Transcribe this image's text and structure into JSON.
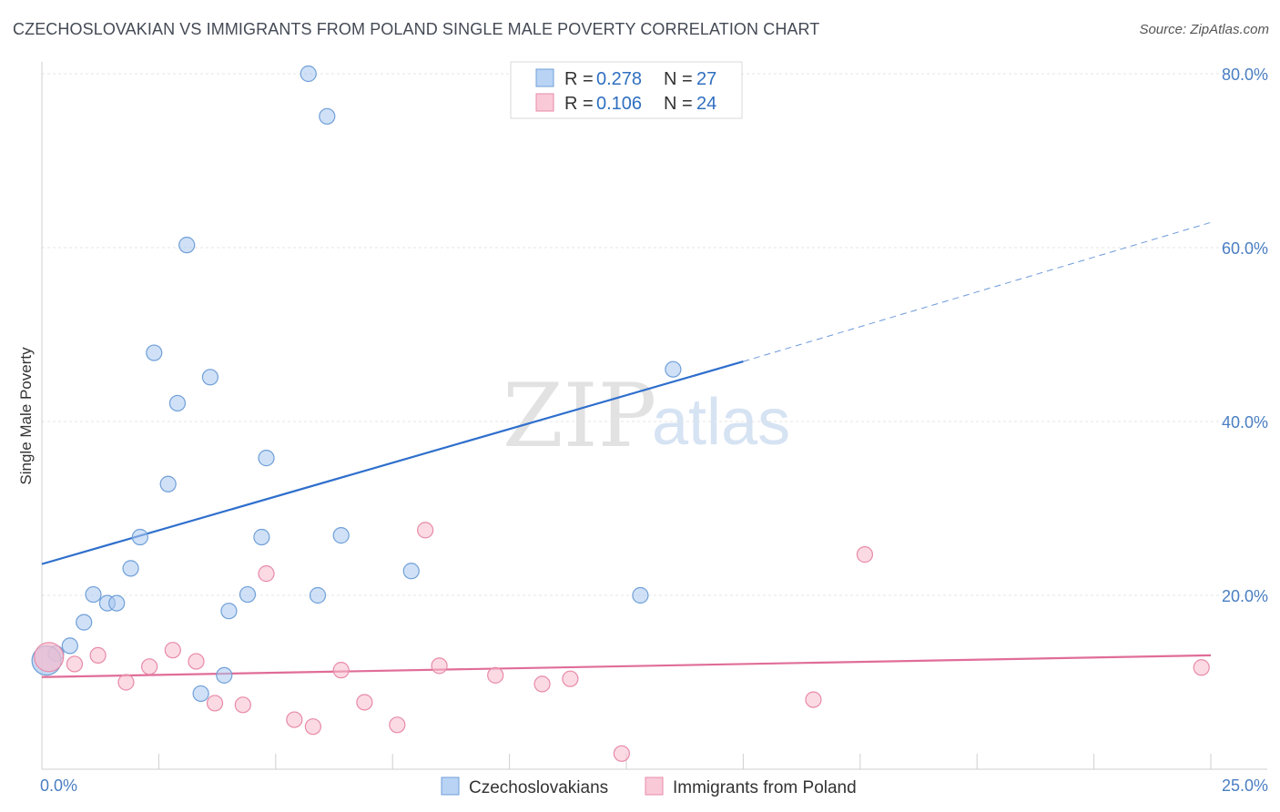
{
  "title": "CZECHOSLOVAKIAN VS IMMIGRANTS FROM POLAND SINGLE MALE POVERTY CORRELATION CHART",
  "source": "Source: ZipAtlas.com",
  "watermark": {
    "zip": "ZIP",
    "atlas": "atlas"
  },
  "legend": {
    "rows": [
      {
        "r_label": "R =",
        "r_value": "0.278",
        "n_label": "N =",
        "n_value": "27"
      },
      {
        "r_label": "R =",
        "r_value": "0.106",
        "n_label": "N =",
        "n_value": "24"
      }
    ]
  },
  "chart_data": {
    "type": "scatter",
    "title": "CZECHOSLOVAKIAN VS IMMIGRANTS FROM POLAND SINGLE MALE POVERTY CORRELATION CHART",
    "xlabel": "",
    "ylabel": "Single Male Poverty",
    "xlim": [
      0,
      25
    ],
    "ylim": [
      0,
      80
    ],
    "x_tick_labels": [
      "0.0%",
      "25.0%"
    ],
    "y_ticks": [
      20,
      40,
      60,
      80
    ],
    "y_tick_labels": [
      "20.0%",
      "40.0%",
      "60.0%",
      "80.0%"
    ],
    "grid": true,
    "legend_position": "top-center",
    "series": [
      {
        "name": "Czechoslovakians",
        "color": "#a9c8f0",
        "stroke": "#6f9fd8",
        "line_color": "#2f6fcc",
        "points": [
          [
            0.3,
            13.3
          ],
          [
            0.6,
            14.2
          ],
          [
            0.9,
            16.9
          ],
          [
            1.1,
            20.1
          ],
          [
            1.4,
            19.1
          ],
          [
            1.6,
            19.1
          ],
          [
            1.9,
            23.1
          ],
          [
            2.1,
            26.7
          ],
          [
            2.4,
            47.9
          ],
          [
            2.7,
            32.8
          ],
          [
            2.9,
            42.1
          ],
          [
            3.1,
            60.3
          ],
          [
            3.4,
            8.7
          ],
          [
            3.6,
            45.1
          ],
          [
            3.9,
            10.8
          ],
          [
            4.0,
            18.2
          ],
          [
            4.4,
            20.1
          ],
          [
            4.7,
            26.7
          ],
          [
            4.8,
            35.8
          ],
          [
            5.7,
            80.0
          ],
          [
            5.9,
            20.0
          ],
          [
            6.1,
            75.1
          ],
          [
            6.4,
            26.9
          ],
          [
            7.9,
            22.8
          ],
          [
            12.8,
            20.0
          ],
          [
            13.5,
            46.0
          ],
          [
            0.1,
            12.5
          ]
        ],
        "trend": {
          "x0": 0,
          "y0": 23.6,
          "x1": 15,
          "y1": 46.9,
          "x2": 25,
          "y2": 62.9
        }
      },
      {
        "name": "Immigrants from Poland",
        "color": "#f7bccd",
        "stroke": "#e88aa8",
        "line_color": "#e06d98",
        "points": [
          [
            0.7,
            12.1
          ],
          [
            1.2,
            13.1
          ],
          [
            1.8,
            10.0
          ],
          [
            2.3,
            11.8
          ],
          [
            2.8,
            13.7
          ],
          [
            3.3,
            12.4
          ],
          [
            3.7,
            7.6
          ],
          [
            4.3,
            7.4
          ],
          [
            4.8,
            22.5
          ],
          [
            5.4,
            5.7
          ],
          [
            5.8,
            4.9
          ],
          [
            6.4,
            11.4
          ],
          [
            6.9,
            7.7
          ],
          [
            7.6,
            5.1
          ],
          [
            8.2,
            27.5
          ],
          [
            8.5,
            11.9
          ],
          [
            9.7,
            10.8
          ],
          [
            10.7,
            9.8
          ],
          [
            11.3,
            10.4
          ],
          [
            12.4,
            1.8
          ],
          [
            16.5,
            8.0
          ],
          [
            17.6,
            24.7
          ],
          [
            24.8,
            11.7
          ],
          [
            0.15,
            12.9
          ]
        ],
        "trend": {
          "x0": 0,
          "y0": 10.6,
          "x1": 25,
          "y1": 13.1
        }
      }
    ]
  },
  "bottom_legend": [
    {
      "label": "Czechoslovakians",
      "color": "#a9c8f0",
      "stroke": "#6f9fd8"
    },
    {
      "label": "Immigrants from Poland",
      "color": "#f7bccd",
      "stroke": "#e88aa8"
    }
  ]
}
